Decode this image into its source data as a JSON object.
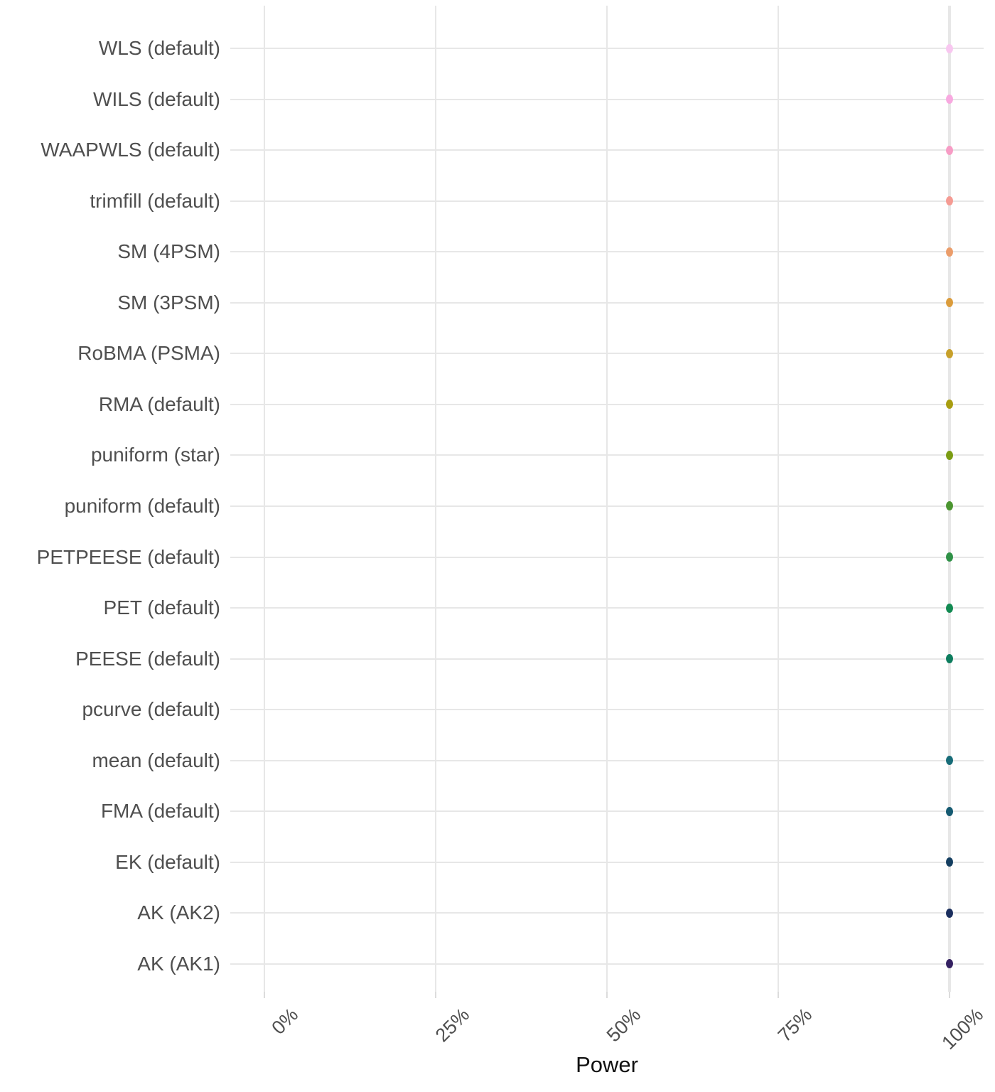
{
  "chart_data": {
    "type": "scatter",
    "subtype": "horizontal-dot-plot",
    "title": "",
    "xlabel": "Power",
    "ylabel": "",
    "xlim": [
      0,
      100
    ],
    "grid": "on",
    "legend": "none",
    "x_tick_labels": [
      "0%",
      "25%",
      "50%",
      "75%",
      "100%"
    ],
    "x_tick_values": [
      0,
      25,
      50,
      75,
      100
    ],
    "categories_top_to_bottom": [
      "WLS (default)",
      "WILS (default)",
      "WAAPWLS (default)",
      "trimfill (default)",
      "SM (4PSM)",
      "SM (3PSM)",
      "RoBMA (PSMA)",
      "RMA (default)",
      "puniform (star)",
      "puniform (default)",
      "PETPEESE (default)",
      "PET (default)",
      "PEESE (default)",
      "pcurve (default)",
      "mean (default)",
      "FMA (default)",
      "EK (default)",
      "AK (AK2)",
      "AK (AK1)"
    ],
    "series": [
      {
        "name": "Power",
        "unit": "%",
        "values": [
          100,
          100,
          100,
          100,
          100,
          100,
          100,
          100,
          100,
          100,
          100,
          100,
          100,
          null,
          100,
          100,
          100,
          100,
          100
        ]
      }
    ],
    "point_colors_top_to_bottom": [
      "#f8c7f0",
      "#f8a9e0",
      "#f79cc5",
      "#f59b93",
      "#eb9d6a",
      "#db9c3c",
      "#c7a02a",
      "#a89d10",
      "#7b9c13",
      "#4b9530",
      "#2f9147",
      "#128a52",
      "#0d7d5e",
      null,
      "#176c78",
      "#155a71",
      "#143e60",
      "#1b2f5e",
      "#342061"
    ],
    "missing_categories": [
      "pcurve (default)"
    ]
  },
  "colors": {
    "background": "#ffffff",
    "gridline": "#e7e7e7",
    "axis_tick": "#dcdcdc",
    "axis_text": "#4f4f4f",
    "axis_title": "#111111"
  }
}
